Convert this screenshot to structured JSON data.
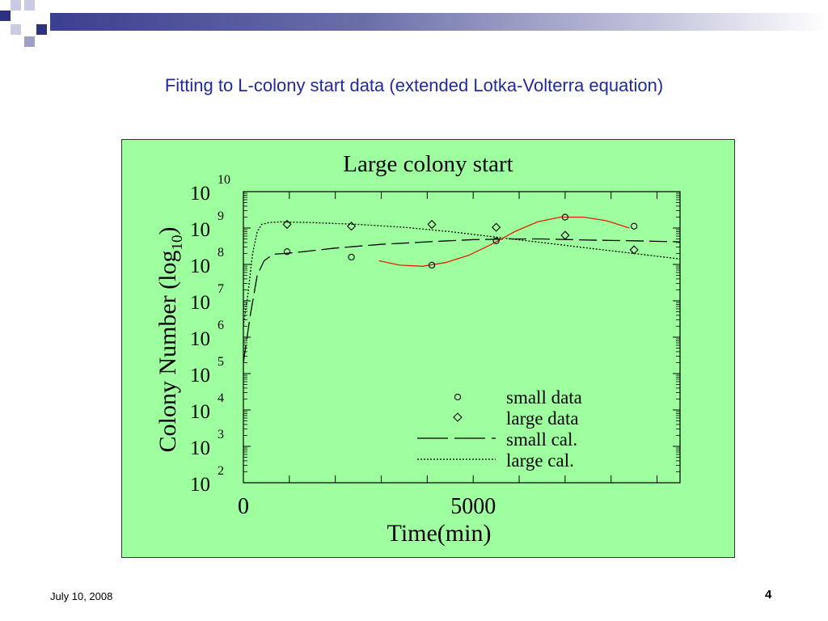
{
  "slide": {
    "title": "Fitting to L-colony start data (extended Lotka-Volterra equation)",
    "date": "July 10, 2008",
    "page_number": "4",
    "colors": {
      "title": "#1f2a9e",
      "panel": "#9dff9d",
      "bar": "#3b3f8f",
      "fit_curve": "#e0200a"
    }
  },
  "chart_data": {
    "type": "scatter",
    "title": "Large colony start",
    "xlabel": "Time(min)",
    "ylabel_main": "Colony Number (log",
    "ylabel_sub": "10",
    "ylabel_close": ")",
    "x_ticks": [
      "0",
      "5000"
    ],
    "y_ticks": [
      {
        "base": "10",
        "exp": "2"
      },
      {
        "base": "10",
        "exp": "3"
      },
      {
        "base": "10",
        "exp": "4"
      },
      {
        "base": "10",
        "exp": "5"
      },
      {
        "base": "10",
        "exp": "6"
      },
      {
        "base": "10",
        "exp": "7"
      },
      {
        "base": "10",
        "exp": "8"
      },
      {
        "base": "10",
        "exp": "9"
      },
      {
        "base": "10",
        "exp": "10"
      }
    ],
    "xlim": [
      0,
      9500
    ],
    "ylim_log10": [
      2,
      10
    ],
    "y_scale": "log",
    "legend_position": "bottom-right",
    "series": [
      {
        "name": "small data",
        "marker": "circle",
        "x": [
          950,
          2350,
          4100,
          5500,
          7000,
          8500
        ],
        "y_log10": [
          8.35,
          8.2,
          7.98,
          8.65,
          9.3,
          9.05
        ]
      },
      {
        "name": "large data",
        "marker": "diamond",
        "x": [
          950,
          2350,
          4100,
          5500,
          7000,
          8500
        ],
        "y_log10": [
          9.1,
          9.05,
          9.1,
          9.02,
          8.8,
          8.4
        ]
      },
      {
        "name": "small cal.",
        "style": "long-dash",
        "x": [
          0,
          150,
          300,
          450,
          650,
          900,
          1300,
          2000,
          3000,
          4000,
          5000,
          5800,
          6500,
          7500,
          8500,
          9500
        ],
        "y_log10": [
          5.3,
          6.6,
          7.7,
          8.1,
          8.28,
          8.3,
          8.35,
          8.45,
          8.55,
          8.62,
          8.68,
          8.7,
          8.7,
          8.67,
          8.65,
          8.62
        ]
      },
      {
        "name": "large cal.",
        "style": "dotted",
        "x": [
          0,
          100,
          200,
          300,
          400,
          550,
          800,
          1500,
          2500,
          3500,
          4500,
          5500,
          6500,
          7500,
          8500,
          9500
        ],
        "y_log10": [
          6.3,
          7.2,
          8.3,
          8.9,
          9.1,
          9.15,
          9.17,
          9.15,
          9.1,
          9.02,
          8.9,
          8.75,
          8.6,
          8.45,
          8.3,
          8.15
        ]
      },
      {
        "name": "",
        "style": "solid-red",
        "x": [
          2950,
          3400,
          3900,
          4400,
          4900,
          5400,
          5900,
          6400,
          6900,
          7400,
          7900,
          8400
        ],
        "y_log10": [
          8.1,
          7.98,
          7.95,
          8.05,
          8.25,
          8.55,
          8.9,
          9.17,
          9.3,
          9.3,
          9.2,
          9.0
        ]
      }
    ]
  }
}
